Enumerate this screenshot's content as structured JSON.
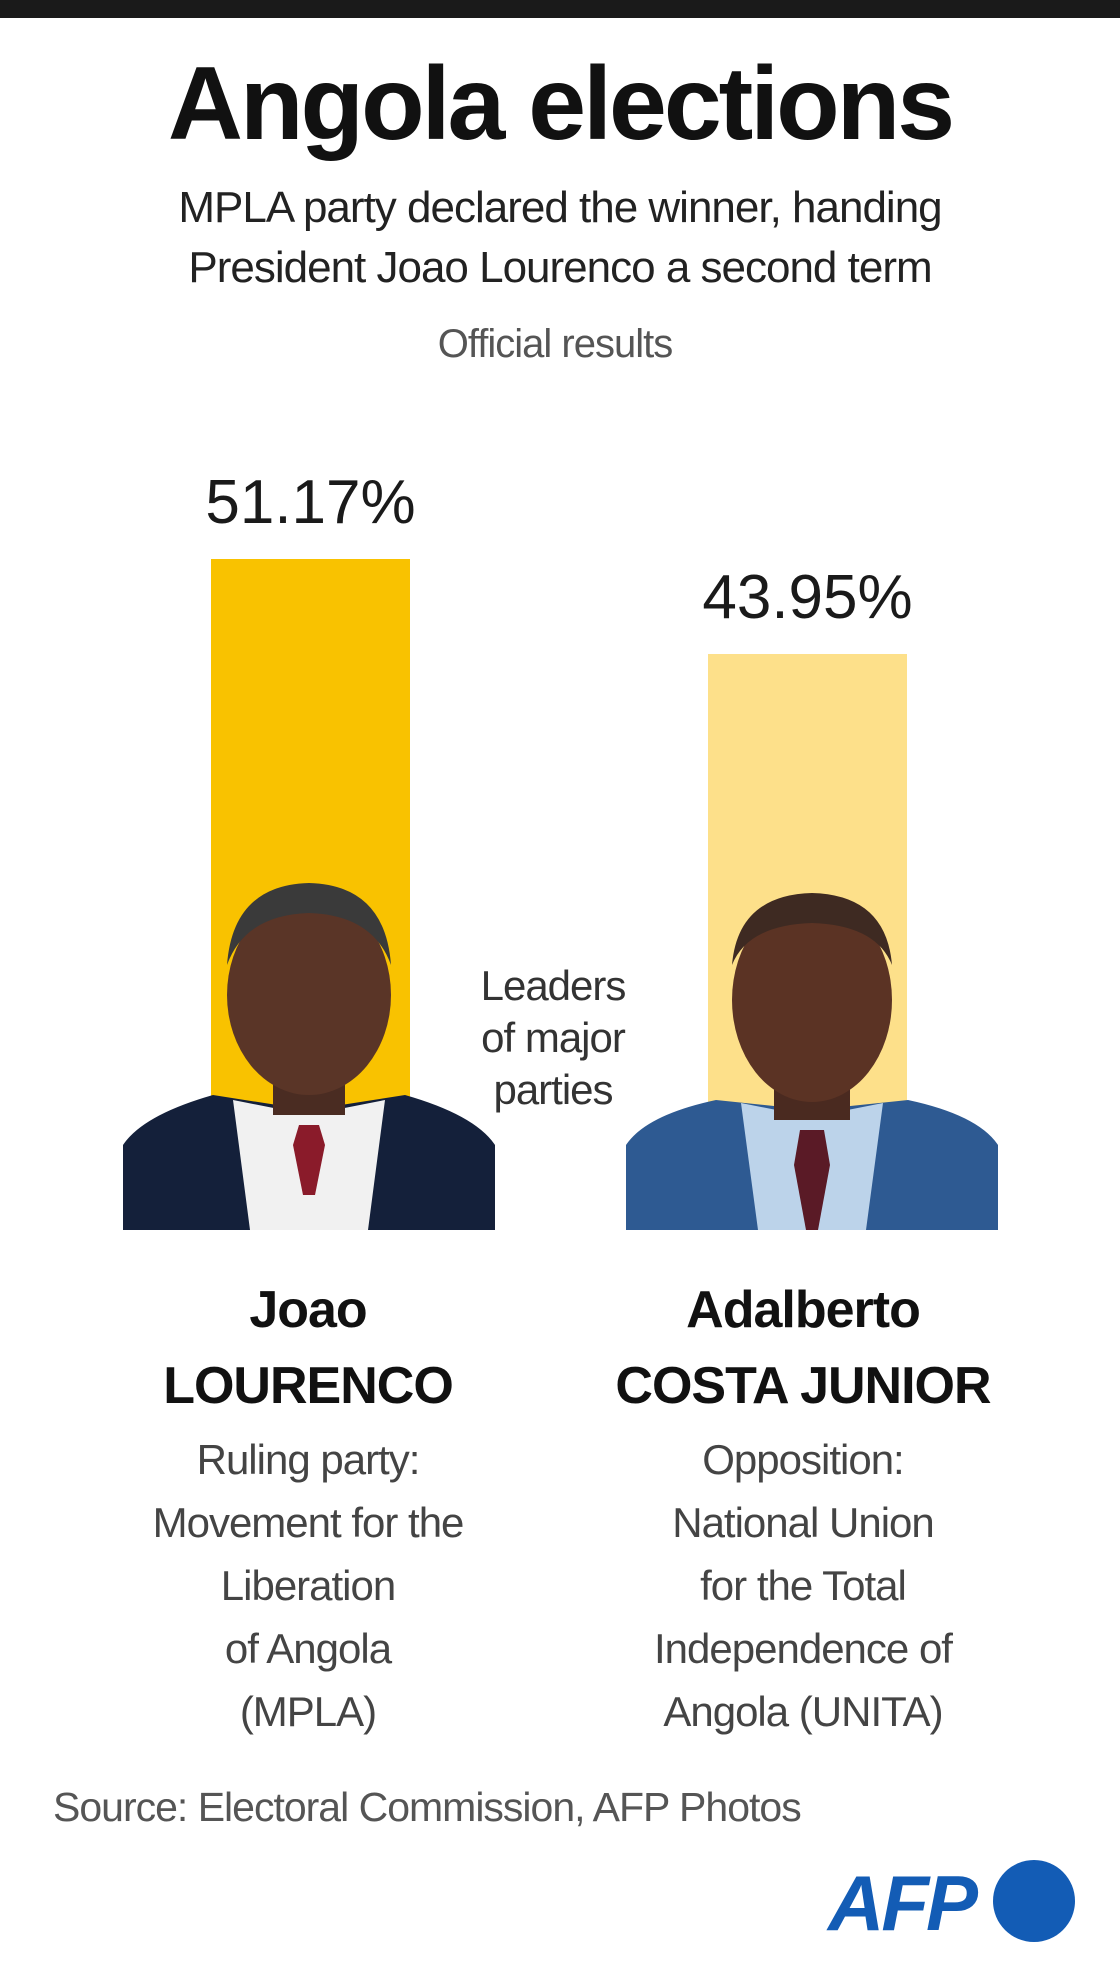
{
  "header": {
    "title": "Angola elections",
    "subtitle_line1": "MPLA party declared the winner, handing",
    "subtitle_line2": "President Joao Lourenco a second term",
    "official": "Official results"
  },
  "center_note": [
    "Leaders",
    "of major",
    "parties"
  ],
  "candidates": [
    {
      "first_name": "Joao",
      "last_name": "LOURENCO",
      "pct_label": "51.17%",
      "desc": [
        "Ruling party:",
        "Movement for the",
        "Liberation",
        "of Angola",
        "(MPLA)"
      ]
    },
    {
      "first_name": "Adalberto",
      "last_name": "COSTA JUNIOR",
      "pct_label": "43.95%",
      "desc": [
        "Opposition:",
        "National Union",
        "for the Total",
        "Independence of",
        "Angola (UNITA)"
      ]
    }
  ],
  "footer": {
    "source": "Source: Electoral Commission, AFP Photos",
    "logo_text": "AFP"
  },
  "colors": {
    "mpla": "#f9c200",
    "unita": "#fde08a",
    "afp_blue": "#135cb5"
  },
  "chart_data": {
    "type": "bar",
    "title": "Angola elections",
    "subtitle": "Official results",
    "categories": [
      "Joao LOURENCO",
      "Adalberto COSTA JUNIOR"
    ],
    "values": [
      51.17,
      43.95
    ],
    "data_labels": [
      "51.17%",
      "43.95%"
    ],
    "colors": [
      "#f9c200",
      "#fde08a"
    ],
    "grid": false
  }
}
